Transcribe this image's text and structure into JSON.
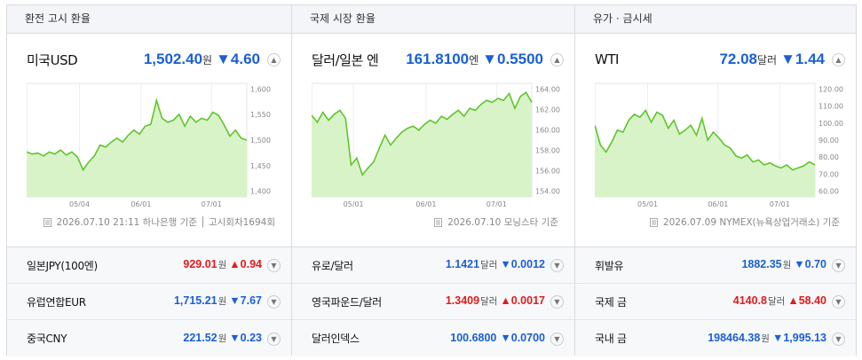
{
  "columns": [
    {
      "header": "환전 고시 환율",
      "main": {
        "name": "미국USD",
        "price": "1,502.40",
        "unit": "원",
        "change": "▼4.60",
        "dir": "down"
      },
      "chart": {
        "y_ticks": [
          "1,600",
          "1,550",
          "1,500",
          "1,450",
          "1,400"
        ],
        "x_ticks": [
          "05/04",
          "06/01",
          "07/01"
        ]
      },
      "source": "2026.07.10 21:11 하나은행 기준 │ 고시회차1694회",
      "rows": [
        {
          "name": "일본JPY(100엔)",
          "price": "929.01",
          "unit": "원",
          "change": "▲0.94",
          "dir": "up"
        },
        {
          "name": "유럽연합EUR",
          "price": "1,715.21",
          "unit": "원",
          "change": "▼7.67",
          "dir": "down"
        },
        {
          "name": "중국CNY",
          "price": "221.52",
          "unit": "원",
          "change": "▼0.23",
          "dir": "down"
        }
      ]
    },
    {
      "header": "국제 시장 환율",
      "main": {
        "name": "달러/일본 엔",
        "price": "161.8100",
        "unit": "엔",
        "change": "▼0.5500",
        "dir": "down"
      },
      "chart": {
        "y_ticks": [
          "164.00",
          "162.00",
          "160.00",
          "158.00",
          "156.00",
          "154.00"
        ],
        "x_ticks": [
          "05/01",
          "06/01",
          "07/01"
        ]
      },
      "source": "2026.07.10 모닝스타 기준",
      "rows": [
        {
          "name": "유로/달러",
          "price": "1.1421",
          "unit": "달러",
          "change": "▼0.0012",
          "dir": "down"
        },
        {
          "name": "영국파운드/달러",
          "price": "1.3409",
          "unit": "달러",
          "change": "▲0.0017",
          "dir": "up"
        },
        {
          "name": "달러인덱스",
          "price": "100.6800",
          "unit": "",
          "change": "▼0.0700",
          "dir": "down"
        }
      ]
    },
    {
      "header": "유가 · 금시세",
      "main": {
        "name": "WTI",
        "price": "72.08",
        "unit": "달러",
        "change": "▼1.44",
        "dir": "down"
      },
      "chart": {
        "y_ticks": [
          "120.00",
          "110.00",
          "100.00",
          "90.00",
          "80.00",
          "70.00",
          "60.00"
        ],
        "x_ticks": [
          "05/01",
          "06/01",
          "07/01"
        ]
      },
      "source": "2026.07.09 NYMEX(뉴욕상업거래소) 기준",
      "rows": [
        {
          "name": "휘발유",
          "price": "1882.35",
          "unit": "원",
          "change": "▼0.70",
          "dir": "down"
        },
        {
          "name": "국제 금",
          "price": "4140.8",
          "unit": "달러",
          "change": "▲58.40",
          "dir": "up"
        },
        {
          "name": "국내 금",
          "price": "198464.38",
          "unit": "원",
          "change": "▼1,995.13",
          "dir": "down"
        }
      ]
    }
  ],
  "icons": {
    "expand": "chevron-up-icon",
    "collapse": "chevron-down-icon",
    "source": "document-icon"
  },
  "colors": {
    "up": "#e21b1b",
    "down": "#1a5fd6",
    "line": "#5ec62a",
    "fill": "#d9f3c9"
  }
}
